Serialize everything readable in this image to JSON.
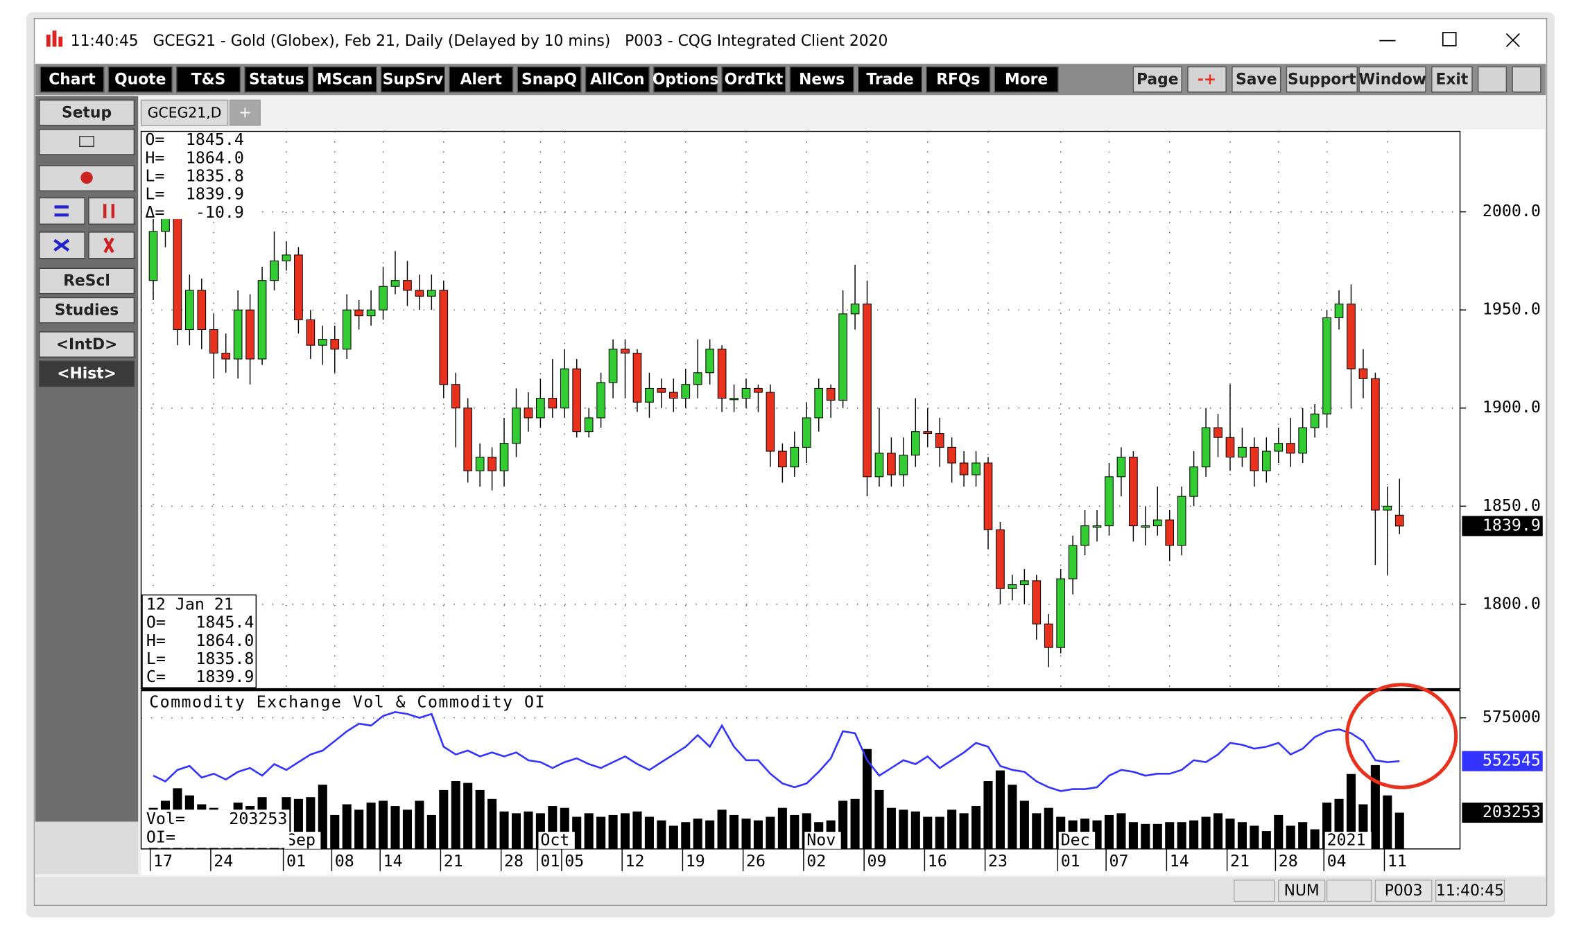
{
  "window": {
    "title": "11:40:45   GCEG21 - Gold (Globex), Feb 21, Daily (Delayed by 10 mins)   P003 - CQG Integrated Client 2020",
    "toolbar": [
      "Chart",
      "Quote",
      "T&S",
      "Status",
      "MScan",
      "SupSrv",
      "Alert",
      "SnapQ",
      "AllCon",
      "Options",
      "OrdTkt",
      "News",
      "Trade",
      "RFQs",
      "More"
    ],
    "toolbar_right": [
      "Page",
      "-+",
      "Save",
      "Support",
      "Window",
      "Exit"
    ],
    "sidebar": [
      "Setup",
      "ReScl",
      "Studies",
      "<IntD>",
      "<Hist>"
    ],
    "tab": "GCEG21,D",
    "tab_add": "+",
    "status": [
      "NUM",
      "P003",
      "11:40:45"
    ]
  },
  "info_top": {
    "labels": [
      "O=",
      "H=",
      "L=",
      "L=",
      "Δ="
    ],
    "values": [
      "1845.4",
      "1864.0",
      "1835.8",
      "1839.9",
      "-10.9"
    ]
  },
  "info_bottom": {
    "date": "12 Jan 21",
    "labels": [
      "O=",
      "H=",
      "L=",
      "C="
    ],
    "values": [
      "1845.4",
      "1864.0",
      "1835.8",
      "1839.9"
    ]
  },
  "chart_data": [
    {
      "type": "candlestick",
      "up_color": "#33cc33",
      "down_color": "#e8321e",
      "ylim": [
        1757,
        2041
      ],
      "yticks": [
        {
          "value": 1800,
          "label": "1800.0"
        },
        {
          "value": 1850,
          "label": "1850.0"
        },
        {
          "value": 1900,
          "label": "1900.0"
        },
        {
          "value": 1950,
          "label": "1950.0"
        },
        {
          "value": 2000,
          "label": "2000.0"
        }
      ],
      "grid": true,
      "xlim": [
        -1,
        108
      ],
      "xticks": [
        {
          "value": 0,
          "label": "17"
        },
        {
          "value": 5,
          "label": "24"
        },
        {
          "value": 11,
          "label": "01"
        },
        {
          "value": 15,
          "label": "08"
        },
        {
          "value": 19,
          "label": "14"
        },
        {
          "value": 24,
          "label": "21"
        },
        {
          "value": 29,
          "label": "28"
        },
        {
          "value": 32,
          "label": "01"
        },
        {
          "value": 34,
          "label": "05"
        },
        {
          "value": 39,
          "label": "12"
        },
        {
          "value": 44,
          "label": "19"
        },
        {
          "value": 49,
          "label": "26"
        },
        {
          "value": 54,
          "label": "02"
        },
        {
          "value": 59,
          "label": "09"
        },
        {
          "value": 64,
          "label": "16"
        },
        {
          "value": 69,
          "label": "23"
        },
        {
          "value": 75,
          "label": "01"
        },
        {
          "value": 79,
          "label": "07"
        },
        {
          "value": 84,
          "label": "14"
        },
        {
          "value": 89,
          "label": "21"
        },
        {
          "value": 93,
          "label": "28"
        },
        {
          "value": 97,
          "label": "04"
        },
        {
          "value": 102,
          "label": "11"
        }
      ],
      "month_ticks": [
        {
          "value": 11,
          "label": "Sep"
        },
        {
          "value": 32,
          "label": "Oct"
        },
        {
          "value": 54,
          "label": "Nov"
        },
        {
          "value": 75,
          "label": "Dec"
        },
        {
          "value": 97,
          "label": "2021"
        }
      ],
      "open": [
        1965,
        1990,
        2000,
        1940,
        1960,
        1940,
        1928,
        1925,
        1950,
        1925,
        1965,
        1975,
        1978,
        1945,
        1932,
        1935,
        1930,
        1950,
        1947,
        1950,
        1962,
        1965,
        1960,
        1957,
        1960,
        1912,
        1900,
        1868,
        1875,
        1868,
        1882,
        1900,
        1895,
        1905,
        1900,
        1920,
        1888,
        1895,
        1913,
        1930,
        1928,
        1903,
        1910,
        1908,
        1905,
        1912,
        1918,
        1930,
        1905,
        1905,
        1910,
        1908,
        1878,
        1870,
        1880,
        1895,
        1910,
        1904,
        1948,
        1953,
        1865,
        1877,
        1866,
        1876,
        1888,
        1887,
        1880,
        1872,
        1866,
        1872,
        1838,
        1808,
        1810,
        1812,
        1790,
        1778,
        1813,
        1830,
        1840,
        1840,
        1865,
        1875,
        1840,
        1840,
        1843,
        1830,
        1855,
        1870,
        1890,
        1885,
        1875,
        1880,
        1868,
        1878,
        1882,
        1877,
        1890,
        1897,
        1946,
        1953,
        1920,
        1915,
        1848,
        1845.4
      ],
      "high": [
        1998,
        2008,
        2005,
        1968,
        1966,
        1948,
        1938,
        1960,
        1958,
        1972,
        1990,
        1985,
        1982,
        1950,
        1942,
        1942,
        1958,
        1955,
        1960,
        1972,
        1980,
        1975,
        1968,
        1968,
        1965,
        1918,
        1905,
        1882,
        1880,
        1895,
        1910,
        1908,
        1915,
        1925,
        1930,
        1925,
        1900,
        1918,
        1935,
        1935,
        1930,
        1918,
        1915,
        1915,
        1920,
        1935,
        1935,
        1932,
        1912,
        1915,
        1912,
        1912,
        1882,
        1888,
        1903,
        1915,
        1912,
        1960,
        1973,
        1965,
        1900,
        1885,
        1885,
        1905,
        1900,
        1895,
        1885,
        1878,
        1878,
        1875,
        1842,
        1815,
        1818,
        1815,
        1795,
        1818,
        1835,
        1848,
        1848,
        1872,
        1880,
        1878,
        1850,
        1860,
        1848,
        1860,
        1878,
        1900,
        1897,
        1912,
        1890,
        1885,
        1885,
        1890,
        1895,
        1900,
        1902,
        1950,
        1960,
        1963,
        1930,
        1918,
        1860,
        1864
      ],
      "low": [
        1955,
        1982,
        1932,
        1932,
        1930,
        1915,
        1918,
        1915,
        1912,
        1922,
        1960,
        1970,
        1938,
        1925,
        1922,
        1918,
        1925,
        1940,
        1942,
        1945,
        1958,
        1952,
        1950,
        1950,
        1905,
        1880,
        1862,
        1860,
        1858,
        1860,
        1875,
        1888,
        1890,
        1895,
        1895,
        1885,
        1885,
        1890,
        1905,
        1905,
        1898,
        1895,
        1900,
        1898,
        1900,
        1905,
        1912,
        1898,
        1898,
        1900,
        1898,
        1870,
        1862,
        1865,
        1872,
        1888,
        1895,
        1900,
        1940,
        1855,
        1860,
        1860,
        1860,
        1870,
        1880,
        1870,
        1862,
        1860,
        1860,
        1828,
        1800,
        1802,
        1800,
        1782,
        1768,
        1775,
        1805,
        1825,
        1832,
        1835,
        1855,
        1832,
        1830,
        1835,
        1822,
        1825,
        1850,
        1865,
        1875,
        1868,
        1870,
        1860,
        1862,
        1872,
        1870,
        1872,
        1885,
        1890,
        1940,
        1900,
        1905,
        1820,
        1815,
        1835.8
      ],
      "close": [
        1990,
        2000,
        1940,
        1960,
        1940,
        1928,
        1925,
        1950,
        1925,
        1965,
        1975,
        1978,
        1945,
        1932,
        1935,
        1930,
        1950,
        1947,
        1950,
        1962,
        1965,
        1960,
        1957,
        1960,
        1912,
        1900,
        1868,
        1875,
        1868,
        1882,
        1900,
        1895,
        1905,
        1900,
        1920,
        1888,
        1895,
        1913,
        1930,
        1928,
        1903,
        1910,
        1908,
        1905,
        1912,
        1918,
        1930,
        1905,
        1905,
        1910,
        1908,
        1878,
        1870,
        1880,
        1895,
        1910,
        1904,
        1948,
        1953,
        1865,
        1877,
        1866,
        1876,
        1888,
        1887,
        1880,
        1872,
        1866,
        1872,
        1838,
        1808,
        1810,
        1812,
        1790,
        1778,
        1813,
        1830,
        1840,
        1840,
        1865,
        1875,
        1840,
        1840,
        1843,
        1830,
        1855,
        1870,
        1890,
        1885,
        1875,
        1880,
        1868,
        1878,
        1882,
        1877,
        1890,
        1897,
        1946,
        1953,
        1920,
        1915,
        1848,
        1850,
        1839.9
      ]
    },
    {
      "type": "combo",
      "title": "Commodity Exchange Vol & Commodity OI",
      "vol_label": "Vol=",
      "oi_label": "OI=",
      "ylim": [
        0,
        870000
      ],
      "y2lim": [
        507000,
        587500
      ],
      "y2ticks": [
        575000
      ],
      "series": [
        {
          "type": "bar",
          "color": "#000000",
          "values": [
            230000,
            270000,
            340000,
            300000,
            250000,
            230000,
            220000,
            260000,
            240000,
            290000,
            210000,
            290000,
            280000,
            290000,
            360000,
            190000,
            250000,
            220000,
            260000,
            270000,
            240000,
            220000,
            270000,
            190000,
            330000,
            380000,
            370000,
            330000,
            280000,
            210000,
            200000,
            210000,
            200000,
            240000,
            230000,
            180000,
            200000,
            180000,
            190000,
            200000,
            210000,
            180000,
            160000,
            130000,
            150000,
            170000,
            160000,
            220000,
            190000,
            170000,
            160000,
            180000,
            230000,
            190000,
            200000,
            150000,
            160000,
            270000,
            280000,
            560000,
            330000,
            230000,
            220000,
            210000,
            180000,
            180000,
            220000,
            200000,
            240000,
            380000,
            440000,
            360000,
            270000,
            200000,
            230000,
            180000,
            160000,
            170000,
            160000,
            190000,
            200000,
            150000,
            140000,
            140000,
            150000,
            150000,
            160000,
            180000,
            200000,
            170000,
            150000,
            130000,
            100000,
            190000,
            130000,
            150000,
            110000,
            260000,
            280000,
            420000,
            250000,
            470000,
            300000,
            203253
          ]
        },
        {
          "type": "line",
          "color": "#3333ff",
          "axis": "y2",
          "values": [
            545000,
            542000,
            548000,
            550000,
            544000,
            546000,
            543000,
            547000,
            549000,
            545000,
            551000,
            548000,
            552000,
            556000,
            558000,
            563000,
            568000,
            572000,
            571000,
            576000,
            578000,
            577000,
            575000,
            577000,
            560000,
            556000,
            558000,
            555000,
            557000,
            555000,
            557000,
            553000,
            552000,
            549000,
            552000,
            554000,
            551000,
            549000,
            552000,
            555000,
            551000,
            548000,
            552000,
            556000,
            560000,
            566000,
            560000,
            571000,
            560000,
            553000,
            553000,
            546000,
            541000,
            539000,
            541000,
            547000,
            554000,
            568000,
            567000,
            553000,
            545000,
            549000,
            553000,
            551000,
            555000,
            549000,
            553000,
            557000,
            562000,
            560000,
            550000,
            548000,
            547000,
            542000,
            539000,
            537000,
            538000,
            538000,
            539000,
            545000,
            548000,
            547000,
            545000,
            546000,
            546000,
            548000,
            553000,
            552000,
            556000,
            562000,
            561000,
            559000,
            560000,
            562000,
            556000,
            559000,
            565000,
            568000,
            569000,
            567000,
            563000,
            553000,
            552000,
            552545
          ]
        }
      ]
    }
  ]
}
